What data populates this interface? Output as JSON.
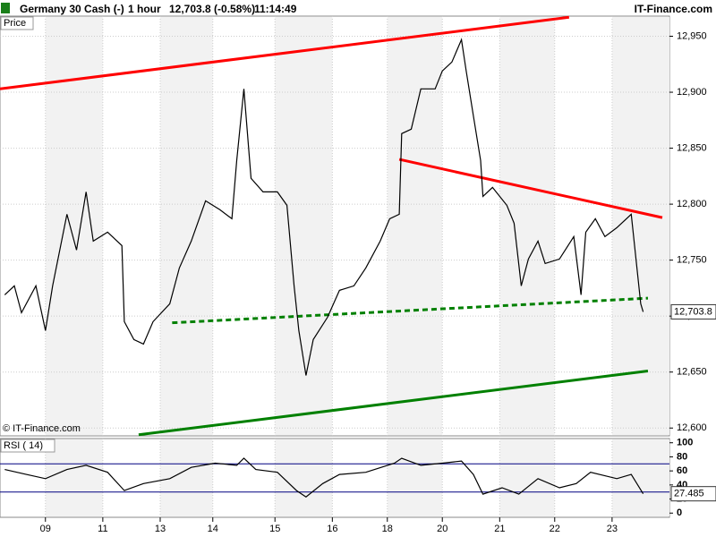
{
  "header": {
    "symbol": "Germany 30 Cash (-)",
    "interval": "1 hour",
    "quote": "12,703.8 (-0.58%)",
    "time": "11:14:49",
    "brand": "IT-Finance.com"
  },
  "chart_data": [
    {
      "type": "line",
      "label": "Price",
      "copyright": "© IT-Finance.com",
      "xlim": [
        0,
        280
      ],
      "xticks": [
        {
          "value": 19,
          "label": "09"
        },
        {
          "value": 43,
          "label": "11"
        },
        {
          "value": 67,
          "label": "13"
        },
        {
          "value": 89,
          "label": "14"
        },
        {
          "value": 115,
          "label": "15"
        },
        {
          "value": 139,
          "label": "16"
        },
        {
          "value": 162,
          "label": "18"
        },
        {
          "value": 185,
          "label": "20"
        },
        {
          "value": 209,
          "label": "21"
        },
        {
          "value": 232,
          "label": "22"
        },
        {
          "value": 256,
          "label": "23"
        }
      ],
      "ylim": [
        12593,
        12968
      ],
      "yticks": [
        {
          "value": 12600,
          "label": "12,600"
        },
        {
          "value": 12650,
          "label": "12,650"
        },
        {
          "value": 12700,
          "label": "12,700"
        },
        {
          "value": 12750,
          "label": "12,750"
        },
        {
          "value": 12800,
          "label": "12,800"
        },
        {
          "value": 12850,
          "label": "12,850"
        },
        {
          "value": 12900,
          "label": "12,900"
        },
        {
          "value": 12950,
          "label": "12,950"
        }
      ],
      "grid": true,
      "series": [
        {
          "color": "#000000",
          "x": [
            2,
            6,
            9,
            15,
            19,
            22,
            28,
            32,
            36,
            39,
            45,
            51,
            52,
            56,
            60,
            64,
            71,
            75,
            80,
            86,
            92,
            97,
            99,
            102,
            105,
            110,
            116,
            120,
            123,
            125,
            128,
            131,
            137,
            142,
            148,
            153,
            159,
            163,
            167,
            168,
            172,
            176,
            182,
            185,
            189,
            193,
            195,
            198,
            201,
            202,
            206,
            212,
            215,
            218,
            221,
            225,
            228,
            234,
            240,
            243,
            245,
            249,
            253,
            258,
            264,
            266,
            268,
            269
          ],
          "values": [
            12719,
            12727,
            12703,
            12727,
            12687,
            12727,
            12791,
            12759,
            12811,
            12767,
            12775,
            12763,
            12695,
            12679,
            12675,
            12695,
            12711,
            12743,
            12767,
            12803,
            12795,
            12787,
            12839,
            12903,
            12823,
            12811,
            12811,
            12799,
            12727,
            12687,
            12647,
            12679,
            12699,
            12723,
            12727,
            12743,
            12767,
            12787,
            12791,
            12863,
            12867,
            12903,
            12903,
            12919,
            12927,
            12947,
            12919,
            12879,
            12839,
            12807,
            12815,
            12799,
            12783,
            12727,
            12751,
            12767,
            12747,
            12751,
            12771,
            12719,
            12775,
            12787,
            12771,
            12779,
            12791,
            12751,
            12711,
            12703.8
          ]
        }
      ],
      "lines": [
        {
          "color": "#ff0000",
          "dashed": false,
          "x": [
            0,
            238
          ],
          "y": [
            12903,
            12967
          ]
        },
        {
          "color": "#ff0000",
          "dashed": false,
          "x": [
            167,
            277
          ],
          "y": [
            12840,
            12788
          ]
        },
        {
          "color": "#008000",
          "dashed": true,
          "x": [
            72,
            271
          ],
          "y": [
            12694,
            12716
          ]
        },
        {
          "color": "#008000",
          "dashed": false,
          "x": [
            58,
            271
          ],
          "y": [
            12594,
            12651
          ]
        }
      ],
      "last": {
        "value": 12703.8,
        "label": "12,703.8"
      }
    },
    {
      "type": "line",
      "label": "RSI ( 14)",
      "xlim": [
        0,
        280
      ],
      "ylim": [
        -6,
        106
      ],
      "yticks": [
        0,
        20,
        40,
        60,
        80,
        100
      ],
      "levels": [
        30,
        70
      ],
      "series": [
        {
          "color": "#000000",
          "x": [
            2,
            11,
            19,
            28,
            36,
            45,
            52,
            60,
            71,
            80,
            90,
            99,
            102,
            107,
            116,
            124,
            128,
            135,
            142,
            153,
            165,
            168,
            176,
            185,
            193,
            198,
            202,
            210,
            217,
            225,
            234,
            241,
            247,
            258,
            264,
            269
          ],
          "values": [
            62,
            55,
            49,
            62,
            68,
            58,
            32,
            42,
            49,
            65,
            71,
            68,
            78,
            62,
            58,
            32,
            23,
            42,
            55,
            58,
            71,
            78,
            68,
            71,
            74,
            55,
            27,
            36,
            27,
            49,
            36,
            42,
            58,
            49,
            55,
            27.485
          ]
        }
      ],
      "last": 27.485
    }
  ]
}
